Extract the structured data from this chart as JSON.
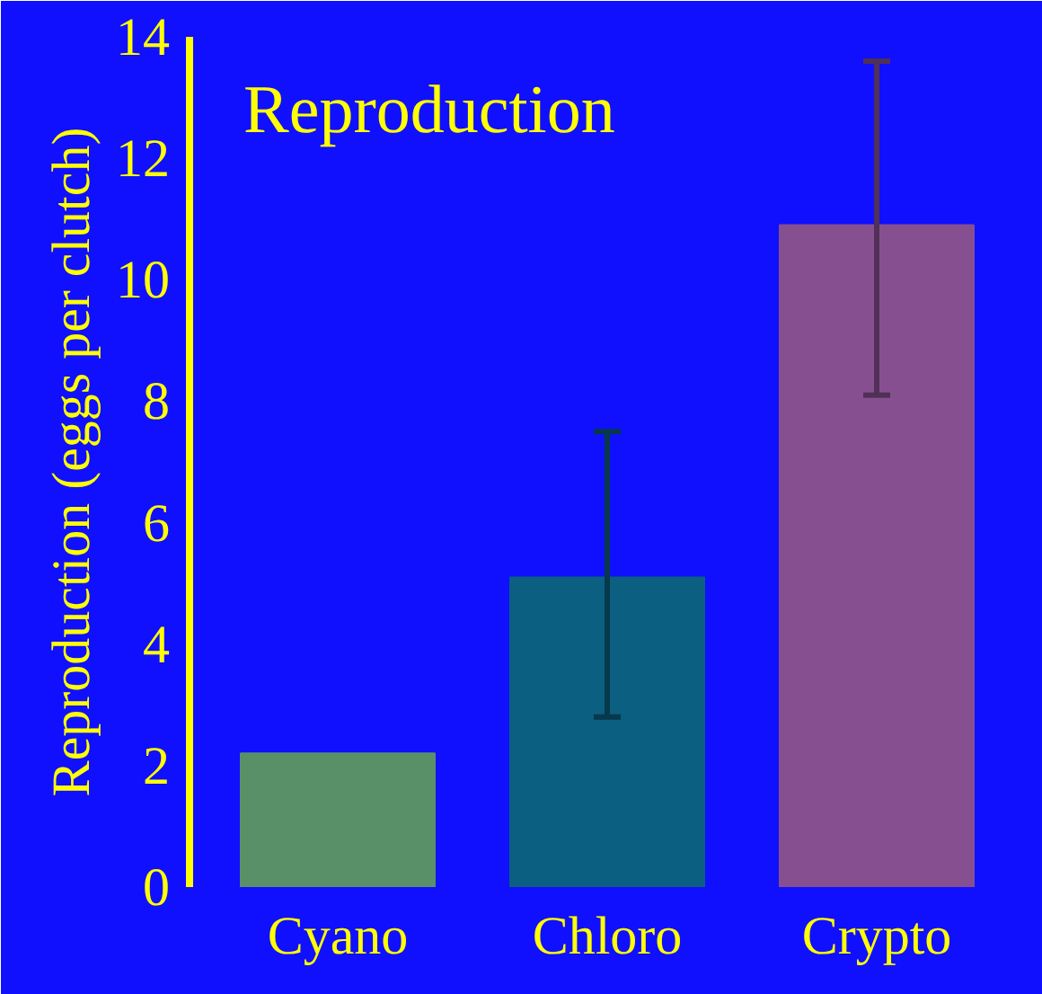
{
  "chart_data": {
    "type": "bar",
    "title": "Reproduction",
    "ylabel": "Reproduction (eggs per clutch)",
    "categories": [
      "Cyano",
      "Chloro",
      "Crypto"
    ],
    "values": [
      2.2,
      5.1,
      10.9
    ],
    "colors": [
      "#5a9068",
      "#0b5f80",
      "#865090"
    ],
    "errors": [
      null,
      [
        2.8,
        7.5
      ],
      [
        8.1,
        13.6
      ]
    ],
    "ylim": [
      0,
      14
    ],
    "yticks": [
      0,
      2,
      4,
      6,
      8,
      10,
      12,
      14
    ],
    "grid": false
  }
}
